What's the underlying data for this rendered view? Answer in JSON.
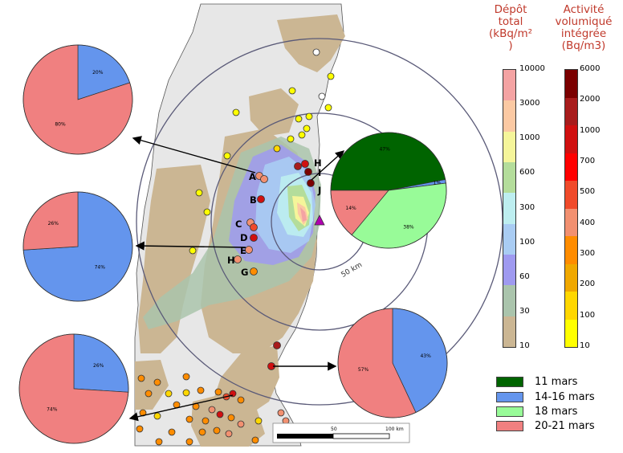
{
  "map": {
    "scale_ticks": [
      "50",
      "100 km"
    ],
    "ring_label": "50 km",
    "site_labels": [
      "A",
      "B",
      "C",
      "D",
      "E",
      "H",
      "G",
      "H",
      "I",
      "J"
    ]
  },
  "pies": [
    {
      "values": [
        20,
        80
      ],
      "labels": [
        "20%",
        "80%"
      ],
      "colors": [
        "#6495ed",
        "#f08080"
      ]
    },
    {
      "values": [
        74,
        26
      ],
      "labels": [
        "74%",
        "26%"
      ],
      "colors": [
        "#6495ed",
        "#f08080"
      ]
    },
    {
      "values": [
        26,
        74
      ],
      "labels": [
        "26%",
        "74%"
      ],
      "colors": [
        "#6495ed",
        "#f08080"
      ]
    },
    {
      "values": [
        47,
        1,
        38,
        14
      ],
      "labels": [
        "47%",
        "1%",
        "38%",
        "14%"
      ],
      "colors": [
        "#006400",
        "#6495ed",
        "#98fb98",
        "#f08080"
      ]
    },
    {
      "values": [
        43,
        57
      ],
      "labels": [
        "43%",
        "57%"
      ],
      "colors": [
        "#6495ed",
        "#f08080"
      ]
    }
  ],
  "depot_scale": {
    "title": [
      "Dépôt",
      "total",
      "(kBq/m²",
      ")"
    ],
    "ticks": [
      "10000",
      "3000",
      "1000",
      "600",
      "300",
      "100",
      "60",
      "30",
      "10"
    ],
    "colors": [
      "#f4a3a3",
      "#fbc9a3",
      "#f5f59a",
      "#b4dd9b",
      "#bdeef0",
      "#a9ccf3",
      "#9f9af0",
      "#aac4ac",
      "#cbb693"
    ]
  },
  "activity_scale": {
    "title": [
      "Activité",
      "volumiqué",
      "intégrée",
      "(Bq/m3)"
    ],
    "ticks": [
      "6000",
      "2000",
      "1000",
      "700",
      "500",
      "400",
      "300",
      "200",
      "100",
      "10"
    ],
    "colors": [
      "#7b0000",
      "#a81c1c",
      "#d01010",
      "#ff0000",
      "#f04a2a",
      "#f29070",
      "#ff8c00",
      "#f0a800",
      "#ffd700",
      "#ffff00"
    ]
  },
  "legend": [
    {
      "label": "11 mars",
      "color": "#006400"
    },
    {
      "label": "14-16 mars",
      "color": "#6495ed"
    },
    {
      "label": "18 mars",
      "color": "#98fb98"
    },
    {
      "label": "20-21 mars",
      "color": "#f08080"
    }
  ]
}
